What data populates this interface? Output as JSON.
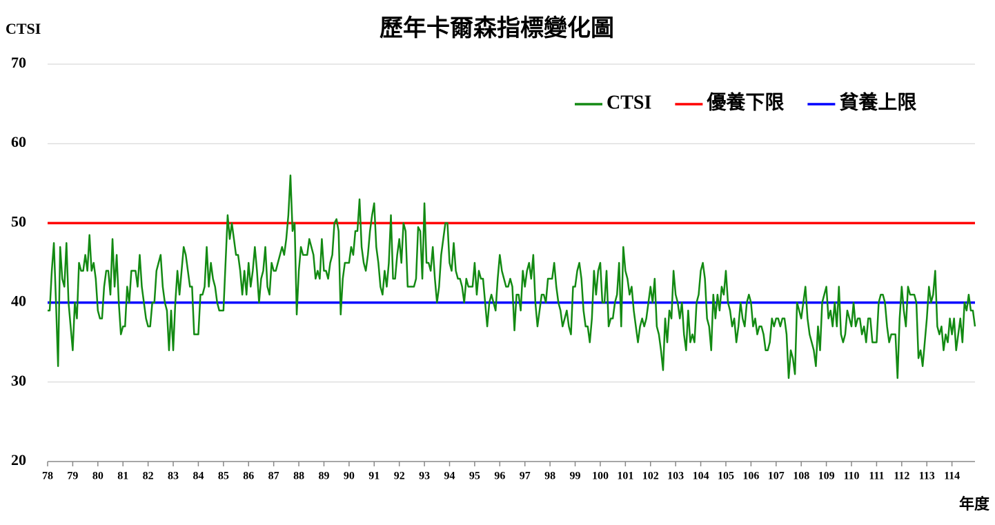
{
  "chart_data": {
    "type": "line",
    "title": "歷年卡爾森指標變化圖",
    "y_label": "CTSI",
    "x_label": "年度",
    "ylim": [
      20,
      70
    ],
    "yticks": [
      20,
      30,
      40,
      50,
      60,
      70
    ],
    "grid": true,
    "legend": "upper right",
    "categories": [
      "78",
      null,
      null,
      null,
      null,
      null,
      null,
      null,
      null,
      null,
      null,
      null,
      "79",
      null,
      null,
      null,
      null,
      null,
      null,
      null,
      null,
      null,
      null,
      null,
      "80",
      null,
      null,
      null,
      null,
      null,
      null,
      null,
      null,
      null,
      null,
      null,
      "81",
      null,
      null,
      null,
      null,
      null,
      null,
      null,
      null,
      null,
      null,
      null,
      "82",
      null,
      null,
      null,
      null,
      null,
      null,
      null,
      null,
      null,
      null,
      null,
      "83",
      null,
      null,
      null,
      null,
      null,
      null,
      null,
      null,
      null,
      null,
      null,
      "84",
      null,
      null,
      null,
      null,
      null,
      null,
      null,
      null,
      null,
      null,
      null,
      "85",
      null,
      null,
      null,
      null,
      null,
      null,
      null,
      null,
      null,
      null,
      null,
      "86",
      null,
      null,
      null,
      null,
      null,
      null,
      null,
      null,
      null,
      null,
      null,
      "87",
      null,
      null,
      null,
      null,
      null,
      null,
      null,
      null,
      null,
      null,
      null,
      "88",
      null,
      null,
      null,
      null,
      null,
      null,
      null,
      null,
      null,
      null,
      null,
      "89",
      null,
      null,
      null,
      null,
      null,
      null,
      null,
      null,
      null,
      null,
      null,
      "90",
      null,
      null,
      null,
      null,
      null,
      null,
      null,
      null,
      null,
      null,
      null,
      "91",
      null,
      null,
      null,
      null,
      null,
      null,
      null,
      null,
      null,
      null,
      null,
      "92",
      null,
      null,
      null,
      null,
      null,
      null,
      null,
      null,
      null,
      null,
      null,
      "93",
      null,
      null,
      null,
      null,
      null,
      null,
      null,
      null,
      null,
      null,
      null,
      "94",
      null,
      null,
      null,
      null,
      null,
      null,
      null,
      null,
      null,
      null,
      null,
      "95",
      null,
      null,
      null,
      null,
      null,
      null,
      null,
      null,
      null,
      null,
      null,
      "96",
      null,
      null,
      null,
      null,
      null,
      null,
      null,
      null,
      null,
      null,
      null,
      "97",
      null,
      null,
      null,
      null,
      null,
      null,
      null,
      null,
      null,
      null,
      null,
      "98",
      null,
      null,
      null,
      null,
      null,
      null,
      null,
      null,
      null,
      null,
      null,
      "99",
      null,
      null,
      null,
      null,
      null,
      null,
      null,
      null,
      null,
      null,
      null,
      "100",
      null,
      null,
      null,
      null,
      null,
      null,
      null,
      null,
      null,
      null,
      null,
      "101",
      null,
      null,
      null,
      null,
      null,
      null,
      null,
      null,
      null,
      null,
      null,
      "102",
      null,
      null,
      null,
      null,
      null,
      null,
      null,
      null,
      null,
      null,
      null,
      "103",
      null,
      null,
      null,
      null,
      null,
      null,
      null,
      null,
      null,
      null,
      null,
      "104",
      null,
      null,
      null,
      null,
      null,
      null,
      null,
      null,
      null,
      null,
      null,
      "105",
      null,
      null,
      null,
      null,
      null,
      null,
      null,
      null,
      null,
      null,
      null,
      "106",
      null,
      null,
      null,
      null,
      null,
      null,
      null,
      null,
      null,
      null,
      null,
      "107",
      null,
      null,
      null,
      null,
      null,
      null,
      null,
      null,
      null,
      null,
      null,
      "108",
      null,
      null,
      null,
      null,
      null,
      null,
      null,
      null,
      null,
      null,
      null,
      "109",
      null,
      null,
      null,
      null,
      null,
      null,
      null,
      null,
      null,
      null,
      null,
      "110",
      null,
      null,
      null,
      null,
      null,
      null,
      null,
      null,
      null,
      null,
      null,
      "111",
      null,
      null,
      null,
      null,
      null,
      null,
      null,
      null,
      null,
      null,
      null,
      "112",
      null,
      null,
      null,
      null,
      null,
      null,
      null,
      null,
      null,
      null,
      null,
      "113",
      null,
      null,
      null,
      null,
      null,
      null,
      null,
      null,
      null,
      null,
      null,
      "114",
      null,
      null,
      null,
      null,
      null,
      null,
      null,
      null,
      null,
      null,
      null
    ],
    "series": [
      {
        "name": "CTSI",
        "color": "#138a13",
        "values": [
          39,
          39,
          44,
          47.5,
          40,
          32,
          47,
          43,
          42,
          47.5,
          40,
          37,
          34,
          40,
          38,
          45,
          44,
          44,
          46,
          44,
          48.5,
          44,
          45,
          43,
          39,
          38,
          38,
          42,
          44,
          44,
          41,
          48,
          42,
          46,
          40,
          36,
          37,
          37,
          42,
          40,
          44,
          44,
          44,
          42,
          46,
          42,
          40,
          38,
          37,
          37,
          40,
          40,
          44,
          45,
          46,
          42,
          40,
          39,
          34,
          39,
          34,
          40,
          44,
          41,
          44,
          47,
          46,
          44,
          42,
          42,
          36,
          36,
          36,
          41,
          41,
          42,
          47,
          42,
          45,
          43,
          42,
          40,
          39,
          39,
          39,
          45,
          51,
          48,
          50,
          48,
          46,
          46,
          44,
          41,
          44,
          41,
          45,
          42,
          44,
          47,
          44,
          40,
          43,
          44,
          47,
          42,
          41,
          45,
          44,
          44,
          45,
          46,
          47,
          46,
          48,
          51,
          56,
          49,
          50,
          38.5,
          44,
          47,
          46,
          46,
          46,
          48,
          47,
          46,
          43,
          44,
          43,
          48,
          44,
          44,
          43,
          45,
          46,
          50,
          50.5,
          49,
          38.5,
          43,
          45,
          45,
          45,
          47,
          46,
          49,
          49,
          53,
          47,
          45,
          44,
          46,
          49,
          51,
          52.5,
          47,
          45,
          42,
          41,
          44,
          42,
          45,
          51,
          43,
          43,
          46,
          48,
          45,
          50,
          49,
          42,
          42,
          42,
          42,
          43,
          49.5,
          49,
          43,
          52.5,
          45,
          45,
          44,
          47,
          43,
          40,
          42,
          46,
          48,
          50,
          50,
          45,
          44,
          47.5,
          44,
          43,
          43,
          42,
          40,
          43,
          42,
          42,
          42,
          45,
          41,
          44,
          43,
          43,
          40,
          37,
          40,
          41,
          40,
          39,
          43,
          46,
          44,
          43,
          42,
          42,
          43,
          42,
          36.5,
          41,
          41,
          39,
          44,
          42,
          44,
          45,
          43,
          46,
          40,
          37,
          39,
          41,
          41,
          40,
          43,
          43,
          43,
          45,
          42,
          40,
          39,
          37,
          38,
          39,
          37,
          36,
          42,
          42,
          44,
          45,
          43,
          39,
          37,
          37,
          35,
          38,
          44,
          41,
          44,
          45,
          40,
          40,
          44,
          37,
          38,
          38,
          40,
          41,
          45,
          37,
          47,
          44,
          43,
          41,
          42,
          39,
          37,
          35,
          37,
          38,
          37,
          38,
          40,
          42,
          40,
          43,
          37,
          36,
          34,
          31.5,
          38,
          35,
          39,
          38,
          44,
          41,
          40,
          38,
          40,
          36,
          34,
          39,
          35,
          36,
          35,
          40,
          41,
          44,
          45,
          43,
          38,
          37,
          34,
          41,
          38,
          41,
          39,
          42,
          41,
          44,
          40,
          39,
          37,
          38,
          35,
          37,
          40,
          38,
          37,
          40,
          41,
          40,
          37,
          38,
          36,
          37,
          37,
          36,
          34,
          34,
          35,
          38,
          37,
          38,
          38,
          37,
          38,
          38,
          36,
          30.5,
          34,
          33,
          31,
          40,
          39,
          38,
          40,
          42,
          38,
          36,
          35,
          34,
          32,
          37,
          34,
          40,
          41,
          42,
          38,
          39,
          37,
          40,
          37,
          42,
          36,
          35,
          36,
          39,
          38,
          37,
          40,
          37,
          38,
          38,
          36,
          37,
          35,
          38,
          38,
          35,
          35,
          35,
          40,
          41,
          41,
          40,
          37,
          35,
          36,
          36,
          36,
          30.5,
          38,
          42,
          39,
          37,
          42,
          41,
          41,
          41,
          40,
          33,
          34,
          32,
          35,
          38,
          42,
          40,
          41,
          44,
          37,
          36,
          37,
          34,
          36,
          35,
          38,
          36,
          38,
          34,
          36,
          38,
          35,
          40,
          39,
          41,
          39,
          39,
          37
        ]
      }
    ],
    "reference_lines": [
      {
        "name": "優養下限",
        "color": "#ff0000",
        "value": 50
      },
      {
        "name": "貧養上限",
        "color": "#0000ff",
        "value": 40
      }
    ]
  }
}
